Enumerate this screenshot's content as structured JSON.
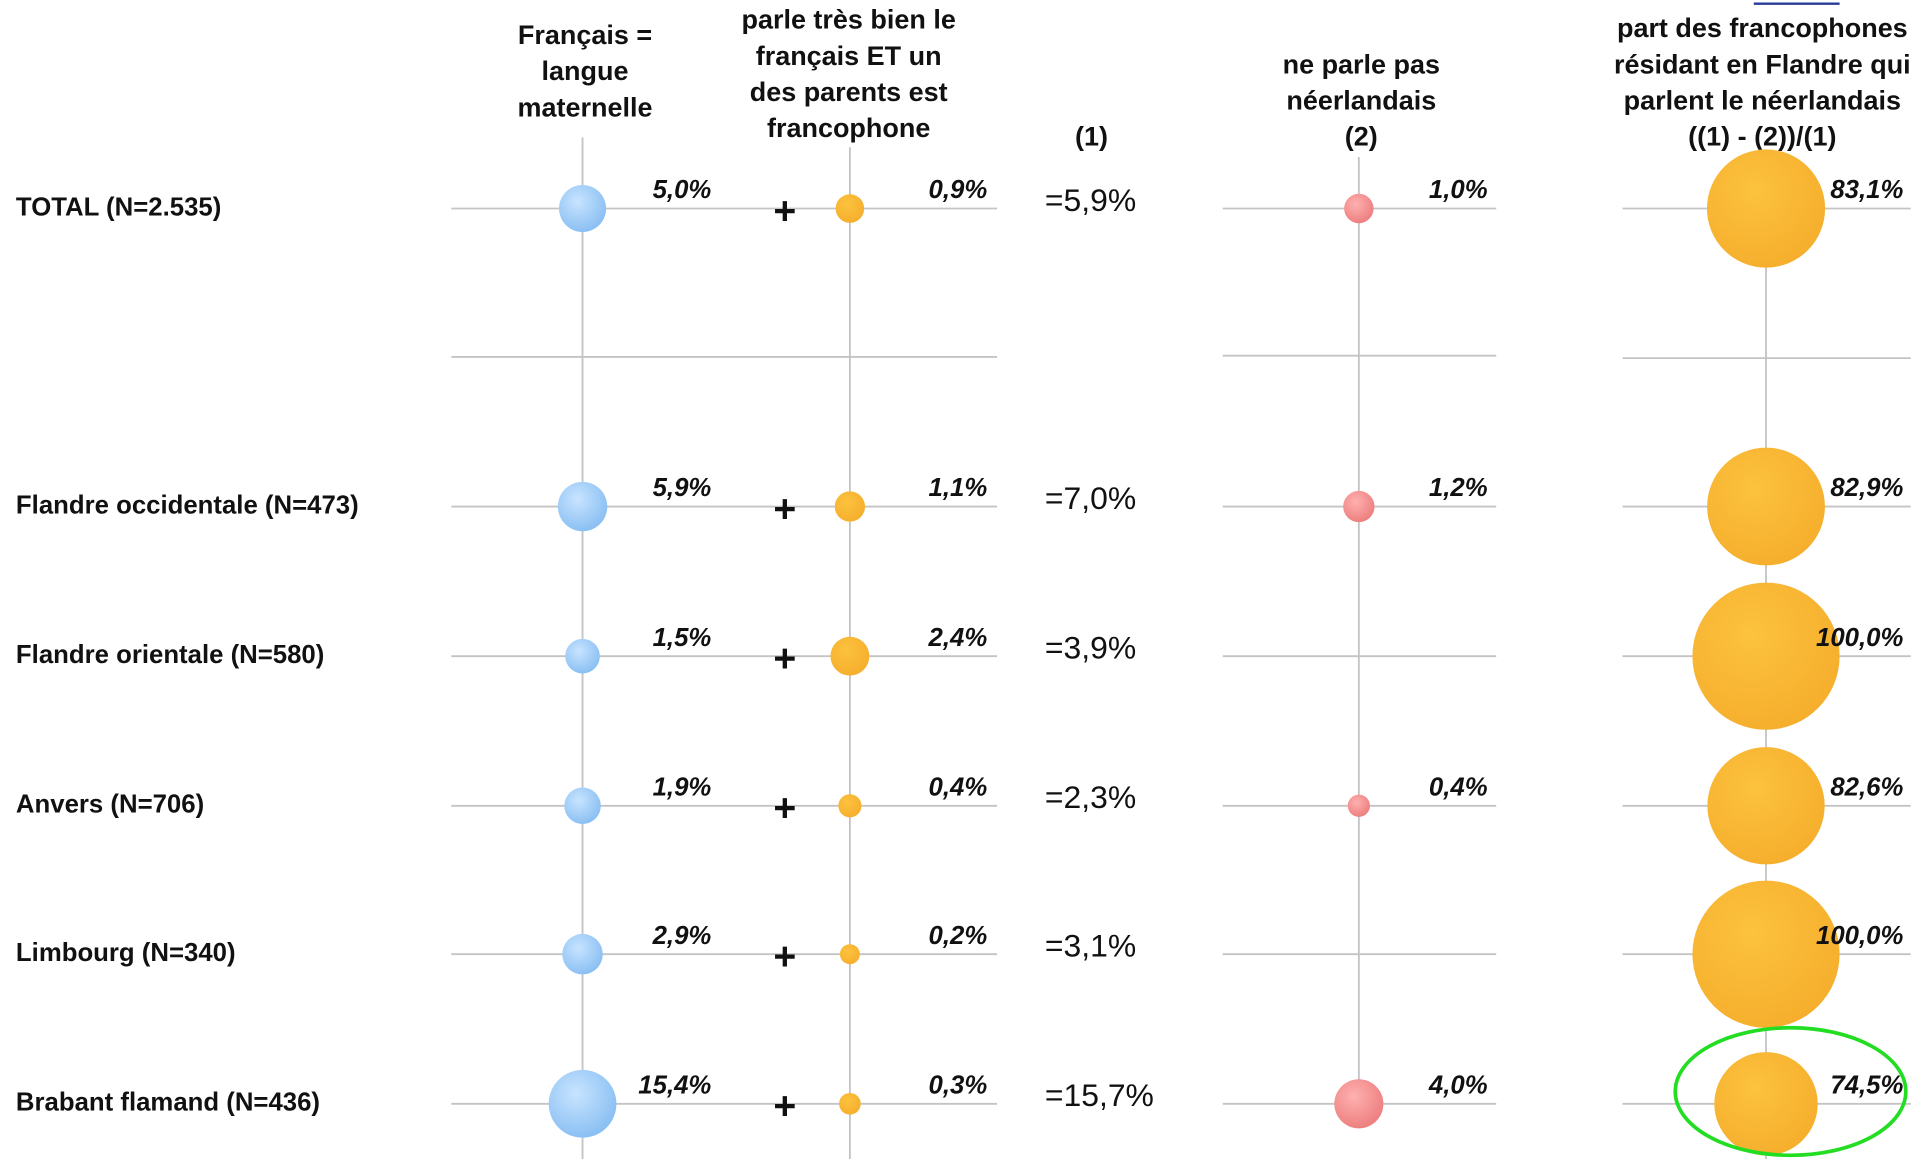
{
  "headers": [
    {
      "lines": [
        "Français =",
        "langue",
        "maternelle"
      ]
    },
    {
      "lines": [
        "parle très bien le",
        "français ET un",
        "des parents est",
        "francophone"
      ]
    },
    {
      "lines": [
        "(1)"
      ]
    },
    {
      "lines": [
        "ne parle pas",
        "néerlandais",
        "(2)"
      ]
    },
    {
      "lines": [
        "part des francophones",
        "résidant en Flandre qui",
        "parlent le néerlandais",
        "((1) - (2))/(1)"
      ]
    }
  ],
  "rows": [
    {
      "label": "TOTAL (N=2.535)",
      "maternelle": 5.0,
      "maternelle_label": "5,0%",
      "parent": 0.9,
      "parent_label": "0,9%",
      "somme": "=5,9%",
      "non_nl": 1.0,
      "non_nl_label": "1,0%",
      "part": 83.1,
      "part_label": "83,1%"
    },
    {
      "label": "Flandre occidentale (N=473)",
      "maternelle": 5.9,
      "maternelle_label": "5,9%",
      "parent": 1.1,
      "parent_label": "1,1%",
      "somme": "=7,0%",
      "non_nl": 1.2,
      "non_nl_label": "1,2%",
      "part": 82.9,
      "part_label": "82,9%"
    },
    {
      "label": "Flandre orientale (N=580)",
      "maternelle": 1.5,
      "maternelle_label": "1,5%",
      "parent": 2.4,
      "parent_label": "2,4%",
      "somme": "=3,9%",
      "non_nl": null,
      "non_nl_label": null,
      "part": 100.0,
      "part_label": "100,0%"
    },
    {
      "label": "Anvers (N=706)",
      "maternelle": 1.9,
      "maternelle_label": "1,9%",
      "parent": 0.4,
      "parent_label": "0,4%",
      "somme": "=2,3%",
      "non_nl": 0.4,
      "non_nl_label": "0,4%",
      "part": 82.6,
      "part_label": "82,6%"
    },
    {
      "label": "Limbourg (N=340)",
      "maternelle": 2.9,
      "maternelle_label": "2,9%",
      "parent": 0.2,
      "parent_label": "0,2%",
      "somme": "=3,1%",
      "non_nl": null,
      "non_nl_label": null,
      "part": 100.0,
      "part_label": "100,0%"
    },
    {
      "label": "Brabant flamand (N=436)",
      "maternelle": 15.4,
      "maternelle_label": "15,4%",
      "parent": 0.3,
      "parent_label": "0,3%",
      "somme": "=15,7%",
      "non_nl": 4.0,
      "non_nl_label": "4,0%",
      "part": 74.5,
      "part_label": "74,5%"
    }
  ]
}
